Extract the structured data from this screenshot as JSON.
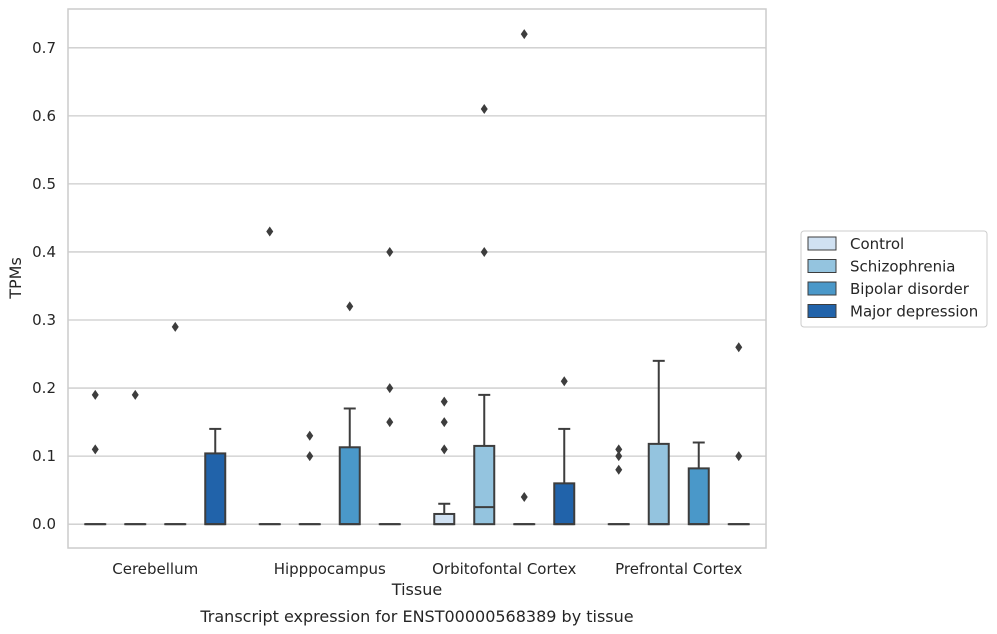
{
  "chart_data": {
    "type": "box",
    "title": "",
    "caption": "Transcript expression for ENST00000568389 by tissue",
    "xlabel": "Tissue",
    "ylabel": "TPMs",
    "ylim": [
      -0.035,
      0.757
    ],
    "yticks": [
      "0.0",
      "0.1",
      "0.2",
      "0.3",
      "0.4",
      "0.5",
      "0.6",
      "0.7"
    ],
    "ytick_values": [
      0,
      0.1,
      0.2,
      0.3,
      0.4,
      0.5,
      0.6,
      0.7
    ],
    "grid": true,
    "legend_position": "right",
    "categories": [
      "Cerebellum",
      "Hipppocampus",
      "Orbitofontal Cortex",
      "Prefrontal Cortex"
    ],
    "series": [
      {
        "name": "Control",
        "color": "#d0e1f2",
        "boxes": [
          {
            "q1": 0,
            "median": 0,
            "q3": 0,
            "whisker_low": 0,
            "whisker_high": 0,
            "outliers": [
              0.11,
              0.19
            ]
          },
          {
            "q1": 0,
            "median": 0,
            "q3": 0,
            "whisker_low": 0,
            "whisker_high": 0,
            "outliers": [
              0.43
            ]
          },
          {
            "q1": 0,
            "median": 0,
            "q3": 0.015,
            "whisker_low": 0,
            "whisker_high": 0.03,
            "outliers": [
              0.11,
              0.15,
              0.18
            ]
          },
          {
            "q1": 0,
            "median": 0,
            "q3": 0,
            "whisker_low": 0,
            "whisker_high": 0,
            "outliers": [
              0.08,
              0.1,
              0.11
            ]
          }
        ]
      },
      {
        "name": "Schizophrenia",
        "color": "#94c4df",
        "boxes": [
          {
            "q1": 0,
            "median": 0,
            "q3": 0,
            "whisker_low": 0,
            "whisker_high": 0,
            "outliers": [
              0.19
            ]
          },
          {
            "q1": 0,
            "median": 0,
            "q3": 0,
            "whisker_low": 0,
            "whisker_high": 0,
            "outliers": [
              0.1,
              0.13
            ]
          },
          {
            "q1": 0,
            "median": 0.025,
            "q3": 0.115,
            "whisker_low": 0,
            "whisker_high": 0.19,
            "outliers": [
              0.4,
              0.61
            ]
          },
          {
            "q1": 0,
            "median": 0,
            "q3": 0.118,
            "whisker_low": 0,
            "whisker_high": 0.24,
            "outliers": []
          }
        ]
      },
      {
        "name": "Bipolar disorder",
        "color": "#4a98c9",
        "boxes": [
          {
            "q1": 0,
            "median": 0,
            "q3": 0,
            "whisker_low": 0,
            "whisker_high": 0,
            "outliers": [
              0.29
            ]
          },
          {
            "q1": 0,
            "median": 0,
            "q3": 0.113,
            "whisker_low": 0,
            "whisker_high": 0.17,
            "outliers": [
              0.32
            ]
          },
          {
            "q1": 0,
            "median": 0,
            "q3": 0,
            "whisker_low": 0,
            "whisker_high": 0,
            "outliers": [
              0.04,
              0.72
            ]
          },
          {
            "q1": 0,
            "median": 0,
            "q3": 0.082,
            "whisker_low": 0,
            "whisker_high": 0.12,
            "outliers": []
          }
        ]
      },
      {
        "name": "Major depression",
        "color": "#2163aa",
        "boxes": [
          {
            "q1": 0,
            "median": 0,
            "q3": 0.104,
            "whisker_low": 0,
            "whisker_high": 0.14,
            "outliers": []
          },
          {
            "q1": 0,
            "median": 0,
            "q3": 0,
            "whisker_low": 0,
            "whisker_high": 0,
            "outliers": [
              0.15,
              0.2,
              0.4
            ]
          },
          {
            "q1": 0,
            "median": 0,
            "q3": 0.06,
            "whisker_low": 0,
            "whisker_high": 0.14,
            "outliers": [
              0.21
            ]
          },
          {
            "q1": 0,
            "median": 0,
            "q3": 0,
            "whisker_low": 0,
            "whisker_high": 0,
            "outliers": [
              0.1,
              0.26
            ]
          }
        ]
      }
    ]
  }
}
